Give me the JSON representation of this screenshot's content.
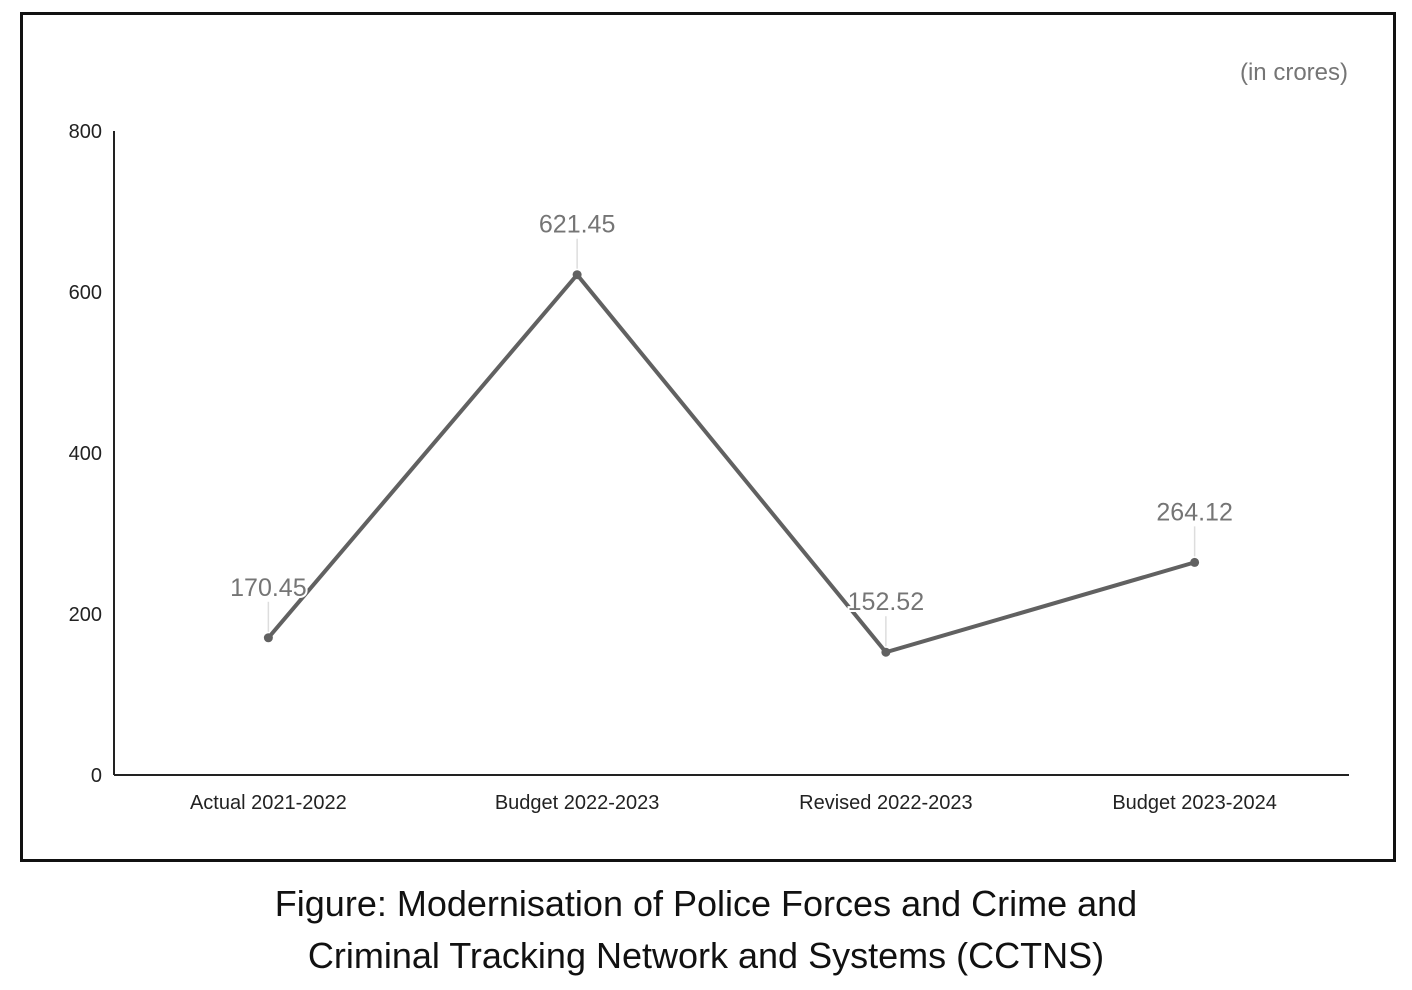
{
  "chart_data": {
    "type": "line",
    "title": "",
    "unit_note": "(in crores)",
    "xlabel": "",
    "ylabel": "",
    "categories": [
      "Actual 2021-2022",
      "Budget 2022-2023",
      "Revised 2022-2023",
      "Budget 2023-2024"
    ],
    "values": [
      170.45,
      621.45,
      152.52,
      264.12
    ],
    "data_labels": [
      "170.45",
      "621.45",
      "152.52",
      "264.12"
    ],
    "ylim": [
      0,
      800
    ],
    "yticks": [
      0,
      200,
      400,
      600,
      800
    ],
    "grid": false,
    "legend": "none",
    "line_color": "#616161",
    "label_color": "#757575"
  },
  "caption": {
    "line1": "Figure: Modernisation of Police Forces and Crime and",
    "line2": "Criminal Tracking Network and Systems (CCTNS)"
  }
}
